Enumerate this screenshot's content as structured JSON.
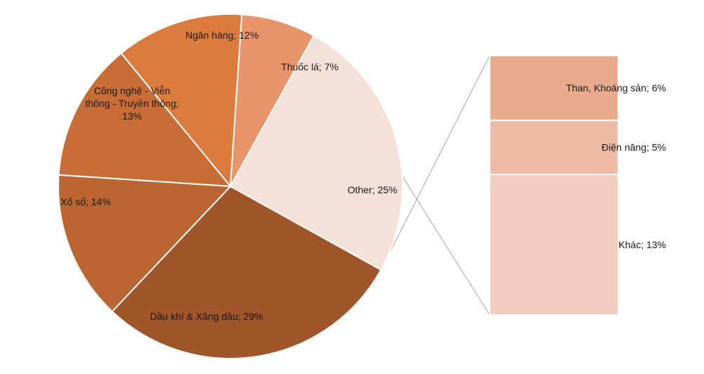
{
  "chart_data": {
    "type": "pie",
    "subtype": "bar-of-pie",
    "pie": {
      "slices": [
        {
          "key": "oil",
          "label_lines": [
            "Dầu khí & Xăng dầu; 29%"
          ],
          "value": 29,
          "color": "#a0552a"
        },
        {
          "key": "lottery",
          "label_lines": [
            "Xổ số; 14%"
          ],
          "value": 14,
          "color": "#bb6533"
        },
        {
          "key": "tech",
          "label_lines": [
            "Công nghệ - Viễn",
            "thông - Truyền thông;",
            "13%"
          ],
          "value": 13,
          "color": "#c96d37"
        },
        {
          "key": "bank",
          "label_lines": [
            "Ngân hàng; 12%"
          ],
          "value": 12,
          "color": "#db7c3c"
        },
        {
          "key": "tobacco",
          "label_lines": [
            "Thuốc lá; 7%"
          ],
          "value": 7,
          "color": "#e8956a"
        },
        {
          "key": "other",
          "label_lines": [
            "Other; 25%"
          ],
          "value": 25,
          "color": "#f6e0da"
        }
      ]
    },
    "bar": {
      "segments": [
        {
          "key": "coal",
          "label": "Than, Khoáng sản; 6%",
          "value": 6,
          "color": "#e9ab8d"
        },
        {
          "key": "power",
          "label": "Điện năng; 5%",
          "value": 5,
          "color": "#eebba5"
        },
        {
          "key": "misc",
          "label": "Khác; 13%",
          "value": 13,
          "color": "#f1cdc0"
        }
      ]
    },
    "legend": "none"
  }
}
